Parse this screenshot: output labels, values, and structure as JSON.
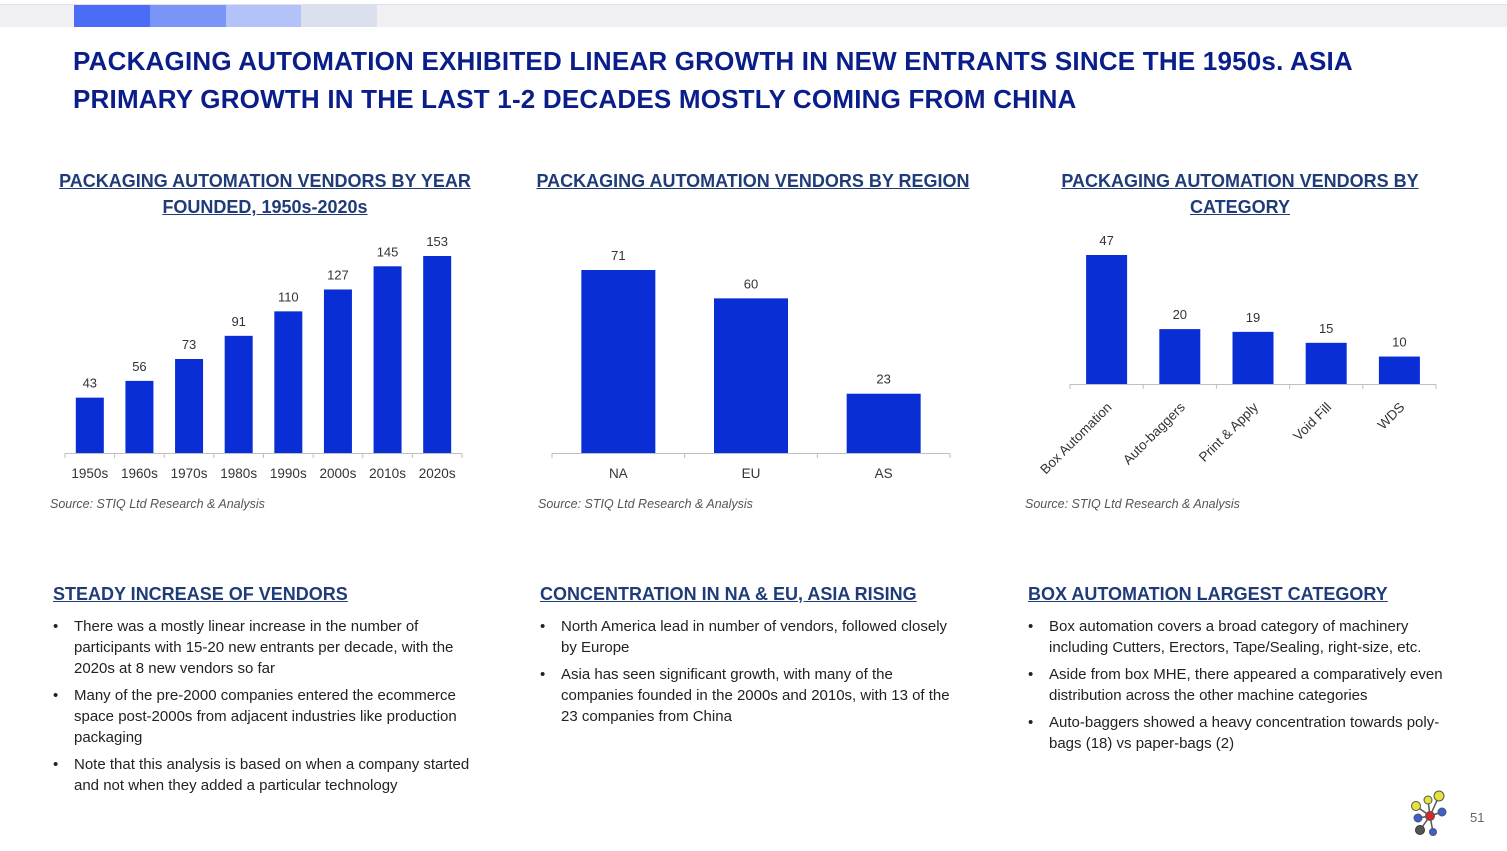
{
  "slide": {
    "title": "PACKAGING AUTOMATION EXHIBITED LINEAR GROWTH IN NEW ENTRANTS SINCE THE 1950s. ASIA PRIMARY GROWTH IN THE LAST 1-2 DECADES MOSTLY COMING FROM CHINA",
    "page_number": "51",
    "progress_colors": [
      "#4a6cf7",
      "#7b94f8",
      "#b4c2fa",
      "#dcdfee"
    ]
  },
  "colors": {
    "bar": "#0a2ed6",
    "axis": "#bfbfbf",
    "heading": "#203c78",
    "title": "#0a1e8a"
  },
  "chart_data": [
    {
      "type": "bar",
      "title": "PACKAGING AUTOMATION VENDORS BY YEAR FOUNDED, 1950s-2020s",
      "categories": [
        "1950s",
        "1960s",
        "1970s",
        "1980s",
        "1990s",
        "2000s",
        "2010s",
        "2020s"
      ],
      "values": [
        43,
        56,
        73,
        91,
        110,
        127,
        145,
        153
      ],
      "ylim": [
        0,
        153
      ],
      "xlabel": "",
      "ylabel": "",
      "source": "Source: STIQ Ltd Research & Analysis"
    },
    {
      "type": "bar",
      "title": "PACKAGING AUTOMATION VENDORS BY REGION",
      "categories": [
        "NA",
        "EU",
        "AS"
      ],
      "values": [
        71,
        60,
        23
      ],
      "ylim": [
        0,
        71
      ],
      "xlabel": "",
      "ylabel": "",
      "source": "Source: STIQ Ltd Research & Analysis"
    },
    {
      "type": "bar",
      "title": "PACKAGING AUTOMATION VENDORS BY CATEGORY",
      "categories": [
        "Box Automation",
        "Auto-baggers",
        "Print & Apply",
        "Void Fill",
        "WDS"
      ],
      "values": [
        47,
        20,
        19,
        15,
        10
      ],
      "ylim": [
        0,
        47
      ],
      "xlabel": "",
      "ylabel": "",
      "source": "Source: STIQ Ltd Research & Analysis"
    }
  ],
  "sections": [
    {
      "heading": "STEADY INCREASE OF VENDORS",
      "bullets": [
        "There was a mostly linear increase in the number of participants with 15-20 new entrants per decade, with the 2020s at 8 new vendors so far",
        "Many of the pre-2000 companies entered the ecommerce space post-2000s from adjacent industries like production packaging",
        "Note that this analysis is based on when a company started and not when they added a particular technology"
      ]
    },
    {
      "heading": "CONCENTRATION IN NA & EU, ASIA RISING",
      "bullets": [
        "North America lead in number of vendors, followed closely by Europe",
        "Asia has seen significant growth, with many of the companies founded in the 2000s and 2010s, with 13 of the 23 companies from China"
      ]
    },
    {
      "heading": "BOX AUTOMATION LARGEST CATEGORY",
      "bullets": [
        "Box automation covers a broad category of machinery including Cutters, Erectors, Tape/Sealing, right-size, etc.",
        "Aside from box MHE, there appeared a comparatively even distribution across the other machine categories",
        "Auto-baggers showed a heavy concentration towards poly-bags (18) vs paper-bags (2)"
      ]
    }
  ]
}
